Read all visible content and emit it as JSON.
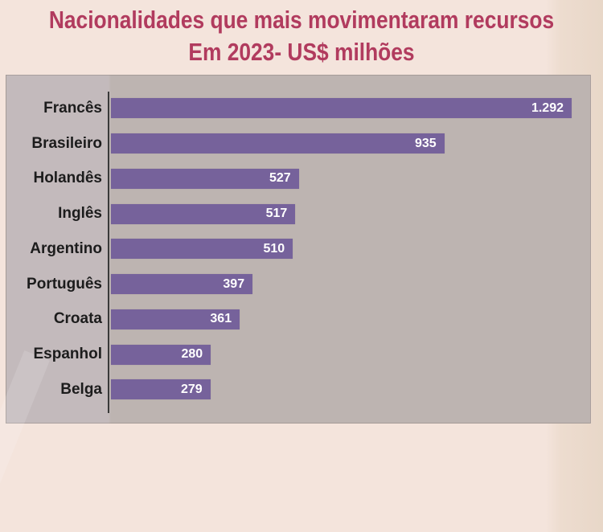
{
  "chart_data": {
    "type": "bar",
    "orientation": "horizontal",
    "title": "Nacionalidades que mais movimentaram recursos",
    "subtitle": "Em 2023- US$ milhões",
    "categories": [
      "Francês",
      "Brasileiro",
      "Holandês",
      "Inglês",
      "Argentino",
      "Português",
      "Croata",
      "Espanhol",
      "Belga"
    ],
    "values": [
      1292,
      935,
      527,
      517,
      510,
      397,
      361,
      280,
      279
    ],
    "value_labels": [
      "1.292",
      "935",
      "527",
      "517",
      "510",
      "397",
      "361",
      "280",
      "279"
    ],
    "value_label_position": "inside-end",
    "xlim": [
      0,
      1350
    ],
    "grid": false,
    "legend": false,
    "unit": "US$ milhões",
    "year": "2023"
  },
  "colors": {
    "title": "#B13B5E",
    "bar": "#76629B",
    "plot_background": "#BDB4B1",
    "label_band_background": "#C3BABC",
    "page_background": "#F4E4DC",
    "category_label": "#1C1C1C",
    "value_label": "#FFFFFF",
    "axis_line": "#3A3A3A"
  }
}
